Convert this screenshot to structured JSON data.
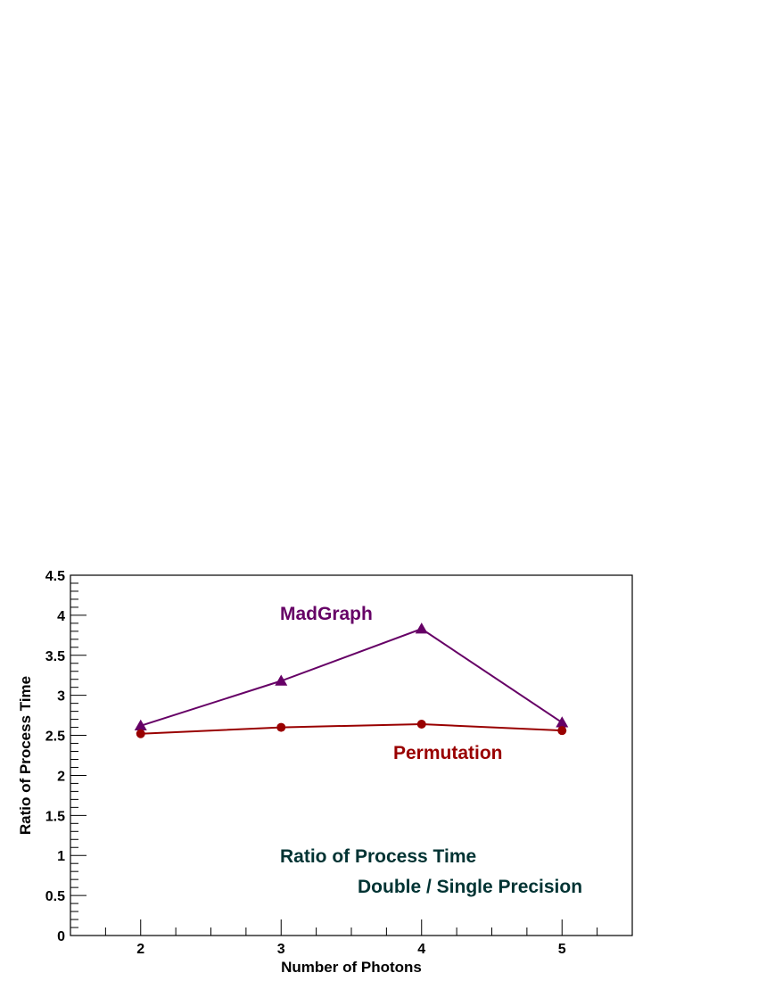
{
  "chart_data": {
    "type": "line",
    "xlabel": "Number of Photons",
    "ylabel": "Ratio of Process Time",
    "xlim": [
      1.5,
      5.5
    ],
    "ylim": [
      0,
      4.5
    ],
    "x_ticks": [
      "2",
      "3",
      "4",
      "5"
    ],
    "y_ticks": [
      "0",
      "0.5",
      "1",
      "1.5",
      "2",
      "2.5",
      "3",
      "3.5",
      "4",
      "4.5"
    ],
    "grid": false,
    "series": [
      {
        "name": "MadGraph",
        "marker": "triangle",
        "color": "#660066",
        "x": [
          2,
          3,
          4,
          5
        ],
        "y": [
          2.62,
          3.18,
          3.83,
          2.66
        ]
      },
      {
        "name": "Permutation",
        "marker": "circle",
        "color": "#990000",
        "x": [
          2,
          3,
          4,
          5
        ],
        "y": [
          2.52,
          2.6,
          2.64,
          2.56
        ]
      }
    ],
    "annotations": {
      "madgraph_label": "MadGraph",
      "permutation_label": "Permutation",
      "note_line1": "Ratio of Process Time",
      "note_line2": "Double / Single Precision"
    },
    "colors": {
      "annotation_note": "#003333"
    }
  }
}
